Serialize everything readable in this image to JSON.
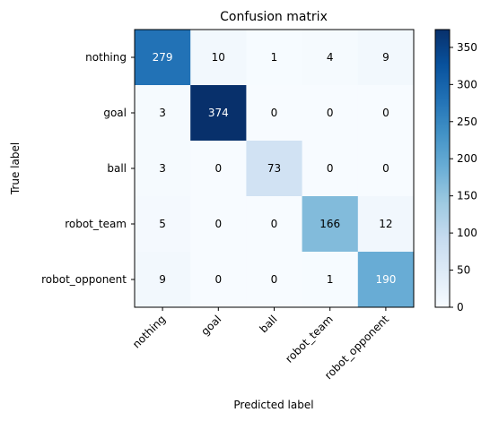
{
  "chart_data": {
    "type": "heatmap",
    "title": "Confusion matrix",
    "xlabel": "Predicted label",
    "ylabel": "True label",
    "x_categories": [
      "nothing",
      "goal",
      "ball",
      "robot_team",
      "robot_opponent"
    ],
    "y_categories": [
      "nothing",
      "goal",
      "ball",
      "robot_team",
      "robot_opponent"
    ],
    "values": [
      [
        279,
        10,
        1,
        4,
        9
      ],
      [
        3,
        374,
        0,
        0,
        0
      ],
      [
        3,
        0,
        73,
        0,
        0
      ],
      [
        5,
        0,
        0,
        166,
        12
      ],
      [
        9,
        0,
        0,
        1,
        190
      ]
    ],
    "colormap": "Blues",
    "colorbar": {
      "min": 0,
      "max": 374,
      "ticks": [
        0,
        50,
        100,
        150,
        200,
        250,
        300,
        350
      ]
    },
    "grid": false
  }
}
